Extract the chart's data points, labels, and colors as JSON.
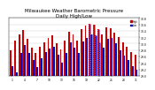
{
  "title": "Milwaukee Weather Barometric Pressure\nDaily High/Low",
  "title_fontsize": 4.0,
  "bar_width": 0.4,
  "ylim": [
    29.0,
    30.8
  ],
  "ytick_labels": [
    "29.0",
    "29.2",
    "29.4",
    "29.6",
    "29.8",
    "30.0",
    "30.2",
    "30.4",
    "30.6",
    "30.8"
  ],
  "ytick_vals": [
    29.0,
    29.2,
    29.4,
    29.6,
    29.8,
    30.0,
    30.2,
    30.4,
    30.6,
    30.8
  ],
  "color_high": "#cc0000",
  "color_low": "#0000cc",
  "days": [
    1,
    2,
    3,
    4,
    5,
    6,
    7,
    8,
    9,
    10,
    11,
    12,
    13,
    14,
    15,
    16,
    17,
    18,
    19,
    20,
    21,
    22,
    23,
    24,
    25,
    26,
    27,
    28,
    29,
    30,
    31
  ],
  "highs": [
    29.8,
    30.1,
    30.3,
    30.42,
    30.15,
    29.88,
    29.7,
    29.9,
    30.05,
    30.18,
    30.25,
    30.0,
    29.82,
    30.1,
    30.38,
    30.28,
    30.1,
    30.45,
    30.55,
    30.62,
    30.58,
    30.45,
    30.3,
    30.52,
    30.48,
    30.35,
    30.2,
    30.05,
    29.9,
    29.75,
    29.65
  ],
  "lows": [
    29.3,
    29.1,
    29.72,
    29.95,
    29.7,
    29.5,
    29.28,
    29.55,
    29.75,
    29.85,
    29.9,
    29.65,
    29.42,
    29.72,
    30.05,
    29.88,
    29.7,
    30.08,
    30.18,
    30.28,
    30.25,
    30.05,
    29.88,
    30.15,
    30.18,
    30.02,
    29.8,
    29.62,
    29.48,
    29.3,
    29.2
  ],
  "highlight_days": [
    20,
    21,
    22
  ],
  "legend_high": "High",
  "legend_low": "Low",
  "background_color": "#ffffff",
  "baseline": 29.0
}
